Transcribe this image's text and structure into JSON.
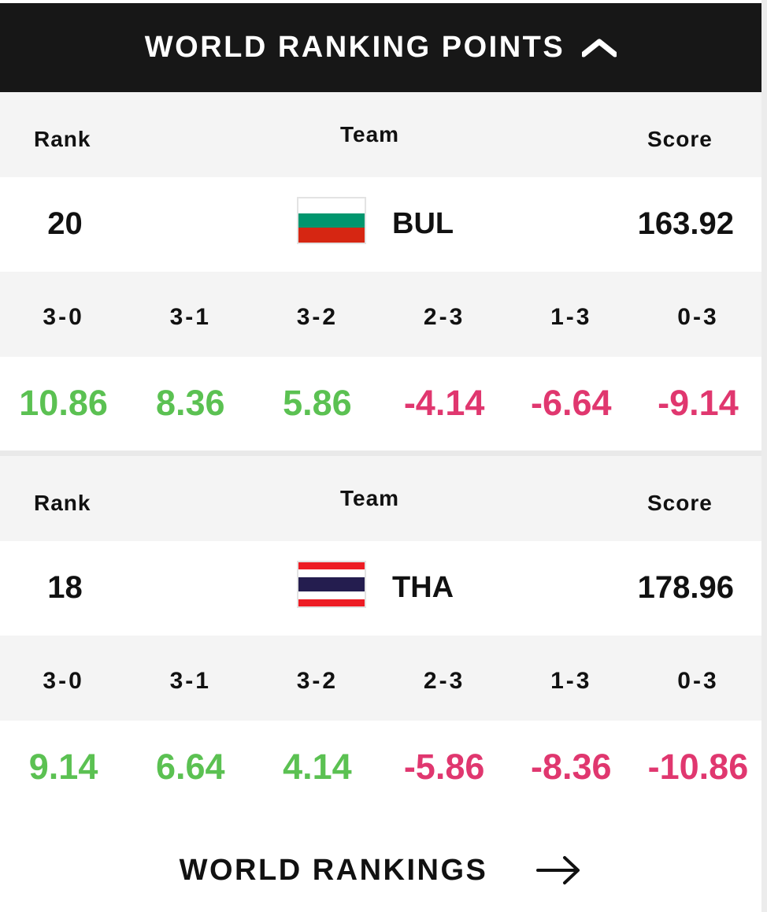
{
  "header": {
    "title": "WORLD RANKING POINTS",
    "toggle_icon": "chevron-up-icon"
  },
  "columns": {
    "rank": "Rank",
    "team": "Team",
    "score": "Score"
  },
  "teams": [
    {
      "rank": "20",
      "code": "BUL",
      "score": "163.92",
      "flag": {
        "name": "bulgaria-flag-icon",
        "stripes": [
          "#ffffff",
          "#00966e",
          "#d62612"
        ]
      },
      "results": [
        {
          "label": "3-0",
          "value": "10.86",
          "tone": "positive"
        },
        {
          "label": "3-1",
          "value": "8.36",
          "tone": "positive"
        },
        {
          "label": "3-2",
          "value": "5.86",
          "tone": "positive"
        },
        {
          "label": "2-3",
          "value": "-4.14",
          "tone": "negative"
        },
        {
          "label": "1-3",
          "value": "-6.64",
          "tone": "negative"
        },
        {
          "label": "0-3",
          "value": "-9.14",
          "tone": "negative"
        }
      ]
    },
    {
      "rank": "18",
      "code": "THA",
      "score": "178.96",
      "flag": {
        "name": "thailand-flag-icon",
        "stripes": [
          "#ed1c24",
          "#ffffff",
          "#241d4f",
          "#ffffff",
          "#ed1c24"
        ]
      },
      "results": [
        {
          "label": "3-0",
          "value": "9.14",
          "tone": "positive"
        },
        {
          "label": "3-1",
          "value": "6.64",
          "tone": "positive"
        },
        {
          "label": "3-2",
          "value": "4.14",
          "tone": "positive"
        },
        {
          "label": "2-3",
          "value": "-5.86",
          "tone": "negative"
        },
        {
          "label": "1-3",
          "value": "-8.36",
          "tone": "negative"
        },
        {
          "label": "0-3",
          "value": "-10.86",
          "tone": "negative"
        }
      ]
    }
  ],
  "footer": {
    "link_label": "WORLD RANKINGS",
    "icon": "arrow-right-icon"
  },
  "colors": {
    "positive": "#5bc152",
    "negative": "#e0376f",
    "header_bg": "#171717"
  }
}
